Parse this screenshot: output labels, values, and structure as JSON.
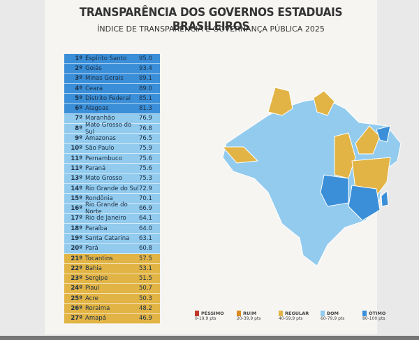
{
  "header": {
    "title": "TRANSPARÊNCIA DOS GOVERNOS ESTADUAIS BRASILEIROS",
    "subtitle": "ÍNDICE DE TRANSPARÊNCIA E GOVERNANÇA PÚBLICA 2025"
  },
  "ranking": [
    [
      "1º",
      "Espírito Santo",
      "95.0"
    ],
    [
      "2º",
      "Goiás",
      "93.4"
    ],
    [
      "3º",
      "Minas Gerais",
      "89.1"
    ],
    [
      "4º",
      "Ceará",
      "89.0"
    ],
    [
      "5º",
      "Distrito Federal",
      "85.1"
    ],
    [
      "6º",
      "Alagoas",
      "81.3"
    ],
    [
      "7º",
      "Maranhão",
      "76.9"
    ],
    [
      "8º",
      "Mato Grosso do Sul",
      "76.8"
    ],
    [
      "9º",
      "Amazonas",
      "76.5"
    ],
    [
      "10º",
      "São Paulo",
      "75.9"
    ],
    [
      "11º",
      "Pernambuco",
      "75.6"
    ],
    [
      "11º",
      "Paraná",
      "75.6"
    ],
    [
      "13º",
      "Mato Grosso",
      "75.3"
    ],
    [
      "14º",
      "Rio Grande do Sul",
      "72.9"
    ],
    [
      "15º",
      "Rondônia",
      "70.1"
    ],
    [
      "16º",
      "Rio Grande do Norte",
      "66.9"
    ],
    [
      "17º",
      "Rio de Janeiro",
      "64.1"
    ],
    [
      "18º",
      "Paraíba",
      "64.0"
    ],
    [
      "19º",
      "Santa Catarina",
      "63.1"
    ],
    [
      "20º",
      "Pará",
      "60.8"
    ],
    [
      "21º",
      "Tocantins",
      "57.5"
    ],
    [
      "22º",
      "Bahia",
      "53.1"
    ],
    [
      "23º",
      "Sergipe",
      "51.5"
    ],
    [
      "24º",
      "Piauí",
      "50.7"
    ],
    [
      "25º",
      "Acre",
      "50.3"
    ],
    [
      "26º",
      "Roraima",
      "48.2"
    ],
    [
      "27º",
      "Amapá",
      "46.9"
    ]
  ],
  "legend": [
    [
      "PÉSSIMO",
      "0-19,9 pts"
    ],
    [
      "RUIM",
      "20-39,9 pts"
    ],
    [
      "REGULAR",
      "40-59,9 pts"
    ],
    [
      "BOM",
      "60-79,9 pts"
    ],
    [
      "ÓTIMO",
      "80-100 pts"
    ]
  ]
}
